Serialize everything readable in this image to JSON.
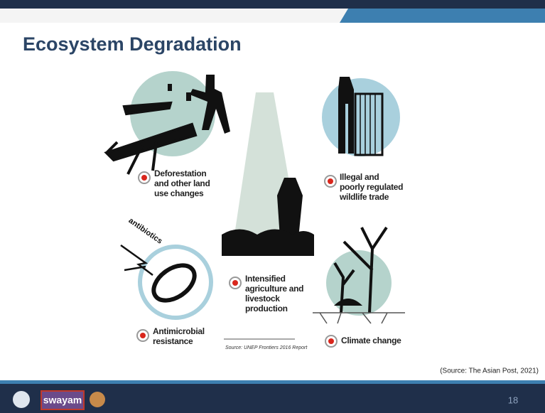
{
  "slide": {
    "title": "Ecosystem Degradation",
    "items": [
      {
        "label": [
          "Deforestation",
          "and other land",
          "use changes"
        ]
      },
      {
        "label": [
          "Illegal and",
          "poorly regulated",
          "wildlife trade"
        ]
      },
      {
        "label": [
          "Intensified",
          "agriculture and",
          "livestock",
          "production"
        ]
      },
      {
        "label": [
          "Antimicrobial",
          "resistance"
        ]
      },
      {
        "label": [
          "Climate change"
        ]
      }
    ],
    "antibiotics": "antibiotics",
    "figure_source": "Source: UNEP Frontiers 2016 Report",
    "slide_source": "(Source: The Asian Post, 2021)",
    "footer": {
      "logo_text": "swayam",
      "page_number": "18"
    }
  }
}
